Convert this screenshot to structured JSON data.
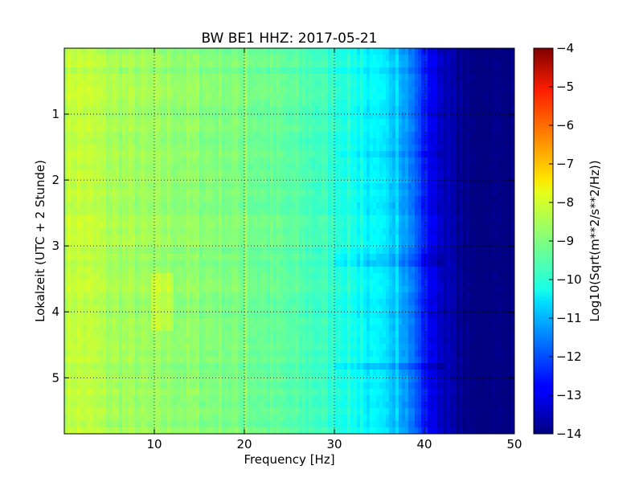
{
  "chart_data": {
    "type": "heatmap",
    "title": "BW BE1 HHZ: 2017-05-21",
    "xlabel": "Frequency [Hz]",
    "ylabel": "Lokalzeit (UTC + 2 Stunde)",
    "xlim": [
      0,
      50
    ],
    "ylim": [
      0,
      5.85
    ],
    "y_inverted": true,
    "x_ticks": [
      10,
      20,
      30,
      40,
      50
    ],
    "x_tick_labels": [
      "10",
      "20",
      "30",
      "40",
      "50"
    ],
    "y_ticks": [
      1,
      2,
      3,
      4,
      5
    ],
    "y_tick_labels": [
      "1",
      "2",
      "3",
      "4",
      "5"
    ],
    "grid": true,
    "colormap": "jet",
    "colorbar": {
      "label": "Log10(Sqrt(m**2/s**2/Hz))",
      "range": [
        -14,
        -4
      ],
      "ticks": [
        -4,
        -5,
        -6,
        -7,
        -8,
        -9,
        -10,
        -11,
        -12,
        -13,
        -14
      ],
      "tick_labels": [
        "−4",
        "−5",
        "−6",
        "−7",
        "−8",
        "−9",
        "−10",
        "−11",
        "−12",
        "−13",
        "−14"
      ]
    },
    "spectral_profile": {
      "frequency_hz": [
        0,
        1,
        3,
        5,
        8,
        10,
        12,
        15,
        18,
        20,
        22,
        25,
        28,
        30,
        32,
        33,
        35,
        37,
        38,
        39,
        40,
        41,
        42,
        43,
        44,
        45,
        50
      ],
      "log10_psd": [
        -8.5,
        -8.3,
        -8.4,
        -8.6,
        -8.7,
        -8.8,
        -8.8,
        -8.9,
        -9.0,
        -9.1,
        -9.2,
        -9.4,
        -9.6,
        -9.8,
        -10.0,
        -10.3,
        -10.5,
        -10.8,
        -11.2,
        -11.8,
        -12.5,
        -13.0,
        -13.3,
        -13.6,
        -13.8,
        -14.0,
        -14.0
      ]
    },
    "line_features_hz": [
      20.1,
      33.0,
      37.0
    ],
    "horizontal_features_h": [
      1.6,
      3.2,
      4.8
    ]
  }
}
